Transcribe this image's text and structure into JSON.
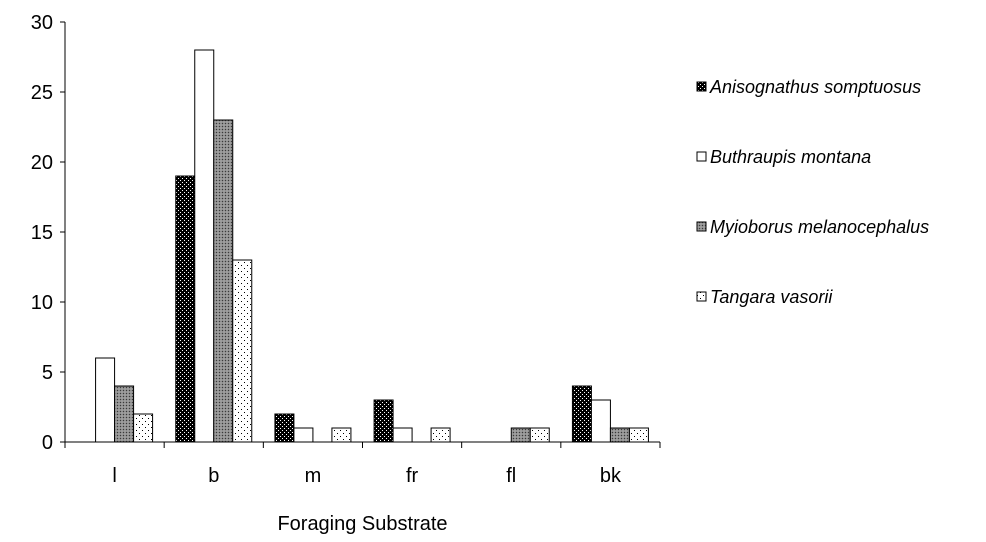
{
  "chart_data": {
    "type": "bar",
    "title": "",
    "xlabel": "Foraging Substrate",
    "ylabel": "",
    "ylim": [
      0,
      30
    ],
    "yticks": [
      "0",
      "5",
      "10",
      "15",
      "20",
      "25",
      "30"
    ],
    "categories": [
      "l",
      "b",
      "m",
      "fr",
      "fl",
      "bk"
    ],
    "legend_position": "right",
    "grid": false,
    "series": [
      {
        "name": "Anisognathus somptuosus",
        "pattern": "black-dotted",
        "values": [
          0,
          19,
          2,
          3,
          0,
          4
        ]
      },
      {
        "name": "Buthraupis montana",
        "pattern": "white",
        "values": [
          6,
          28,
          1,
          1,
          0,
          3
        ]
      },
      {
        "name": "Myioborus melanocephalus",
        "pattern": "gray-dotted",
        "values": [
          4,
          23,
          0,
          0,
          1,
          1
        ]
      },
      {
        "name": "Tangara vasorii",
        "pattern": "sparse-dotted",
        "values": [
          2,
          13,
          1,
          1,
          1,
          1
        ]
      }
    ]
  }
}
